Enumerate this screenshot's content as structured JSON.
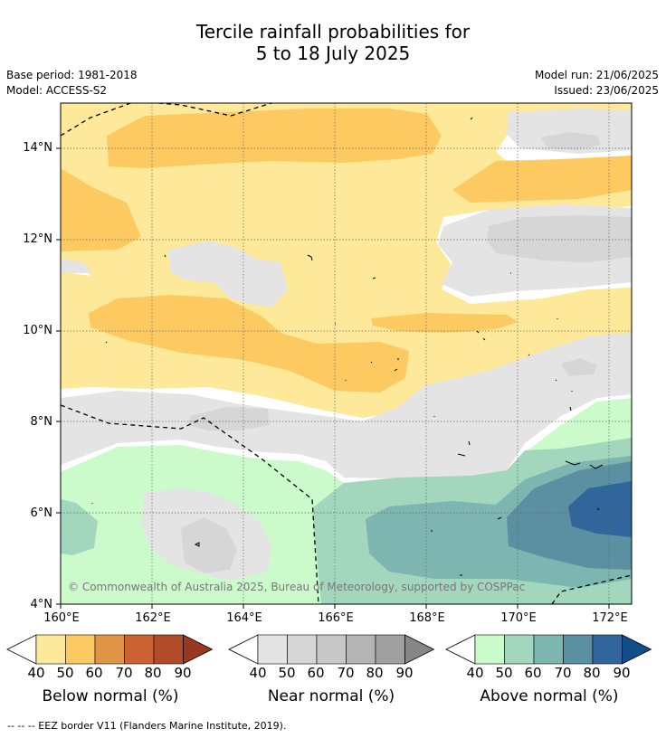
{
  "title": {
    "line1": "Tercile rainfall probabilities for",
    "line2": "5 to 18 July 2025"
  },
  "meta": {
    "base_period": "Base period: 1981-2018",
    "model": "Model: ACCESS-S2",
    "model_run": "Model run: 21/06/2025",
    "issued": "Issued: 23/06/2025"
  },
  "axes": {
    "lat_ticks": [
      "4°N",
      "6°N",
      "8°N",
      "10°N",
      "12°N",
      "14°N"
    ],
    "lon_ticks": [
      "160°E",
      "162°E",
      "164°E",
      "166°E",
      "168°E",
      "170°E",
      "172°E"
    ]
  },
  "map": {
    "copyright": "© Commonwealth of Australia 2025, Bureau of Meteorology, supported by COSPPac"
  },
  "colorbars": {
    "below": {
      "label": "Below normal (%)",
      "ticks": [
        "40",
        "50",
        "60",
        "70",
        "80",
        "90"
      ],
      "colors": [
        "#ffffff",
        "#fee899",
        "#fdca62",
        "#e09446",
        "#cd6232",
        "#b24b2a",
        "#993820"
      ]
    },
    "near": {
      "label": "Near normal (%)",
      "ticks": [
        "40",
        "50",
        "60",
        "70",
        "80",
        "90"
      ],
      "colors": [
        "#ffffff",
        "#e4e4e4",
        "#d6d6d6",
        "#c8c8c8",
        "#b4b4b4",
        "#a0a0a0",
        "#868686"
      ]
    },
    "above": {
      "label": "Above normal (%)",
      "ticks": [
        "40",
        "50",
        "60",
        "70",
        "80",
        "90"
      ],
      "colors": [
        "#ffffff",
        "#cbfbca",
        "#a2d6bd",
        "#7db5b0",
        "#5b8fa2",
        "#31669c",
        "#134e8b"
      ]
    }
  },
  "footnote": "--  --  -- EEZ border V11 (Flanders Marine Institute, 2019)."
}
